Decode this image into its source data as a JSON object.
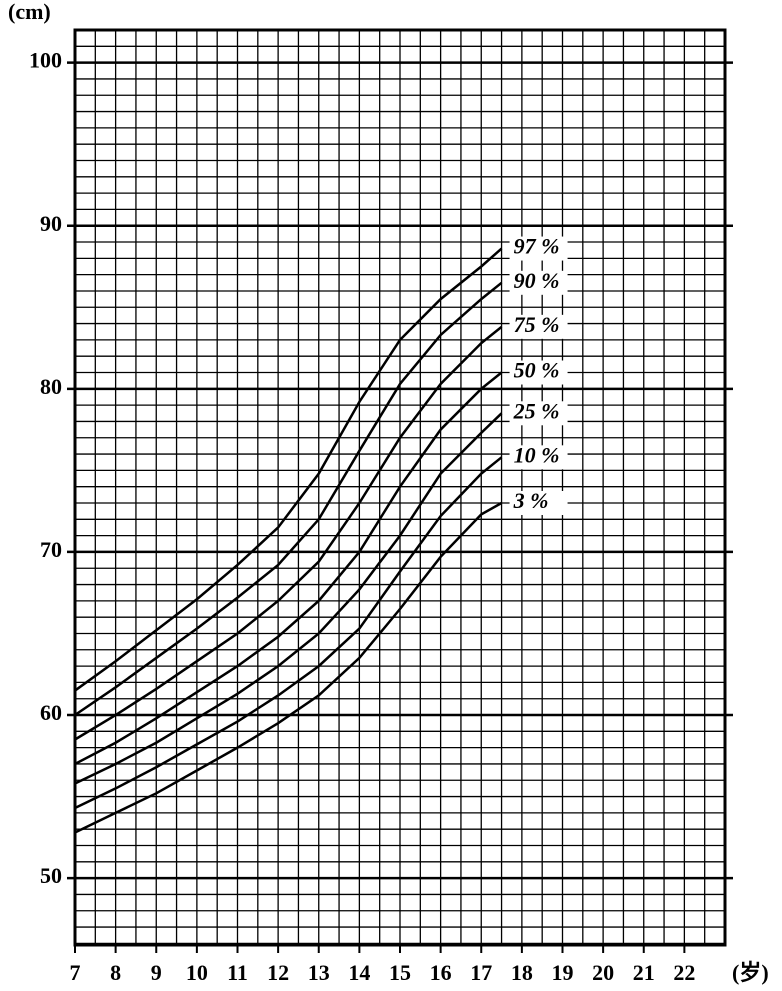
{
  "chart_data": {
    "type": "line",
    "y_label": "(cm)",
    "x_label": "(岁)",
    "x": [
      7,
      8,
      9,
      10,
      11,
      12,
      13,
      14,
      15,
      16,
      17,
      17.5
    ],
    "series": [
      {
        "name": "97 %",
        "color": "#000000",
        "values": [
          61.5,
          63.3,
          65.2,
          67.1,
          69.2,
          71.5,
          74.8,
          79.2,
          83.0,
          85.5,
          87.5,
          88.6
        ]
      },
      {
        "name": "90 %",
        "color": "#000000",
        "values": [
          60.0,
          61.7,
          63.5,
          65.3,
          67.2,
          69.2,
          72.0,
          76.2,
          80.3,
          83.3,
          85.5,
          86.5
        ]
      },
      {
        "name": "75 %",
        "color": "#000000",
        "values": [
          58.5,
          60.0,
          61.6,
          63.3,
          65.0,
          67.0,
          69.4,
          73.0,
          77.0,
          80.3,
          82.8,
          83.8
        ]
      },
      {
        "name": "50 %",
        "color": "#000000",
        "values": [
          57.0,
          58.3,
          59.8,
          61.4,
          63.0,
          64.8,
          67.0,
          70.0,
          74.0,
          77.5,
          80.0,
          81.0
        ]
      },
      {
        "name": "25 %",
        "color": "#000000",
        "values": [
          55.8,
          57.0,
          58.3,
          59.8,
          61.3,
          63.0,
          65.0,
          67.7,
          71.0,
          74.8,
          77.3,
          78.5
        ]
      },
      {
        "name": "10 %",
        "color": "#000000",
        "values": [
          54.3,
          55.5,
          56.8,
          58.2,
          59.6,
          61.2,
          63.0,
          65.3,
          68.8,
          72.2,
          74.8,
          75.8
        ]
      },
      {
        "name": "3 %",
        "color": "#000000",
        "values": [
          52.8,
          54.0,
          55.2,
          56.6,
          58.0,
          59.5,
          61.2,
          63.5,
          66.5,
          69.7,
          72.3,
          73.0
        ]
      }
    ],
    "xlim": [
      7,
      23
    ],
    "xticks": [
      7,
      8,
      9,
      10,
      11,
      12,
      13,
      14,
      15,
      16,
      17,
      18,
      19,
      20,
      21,
      22
    ],
    "ylim": [
      45.9,
      102
    ],
    "yticks": [
      50,
      60,
      70,
      80,
      90,
      100
    ],
    "grid": true
  }
}
